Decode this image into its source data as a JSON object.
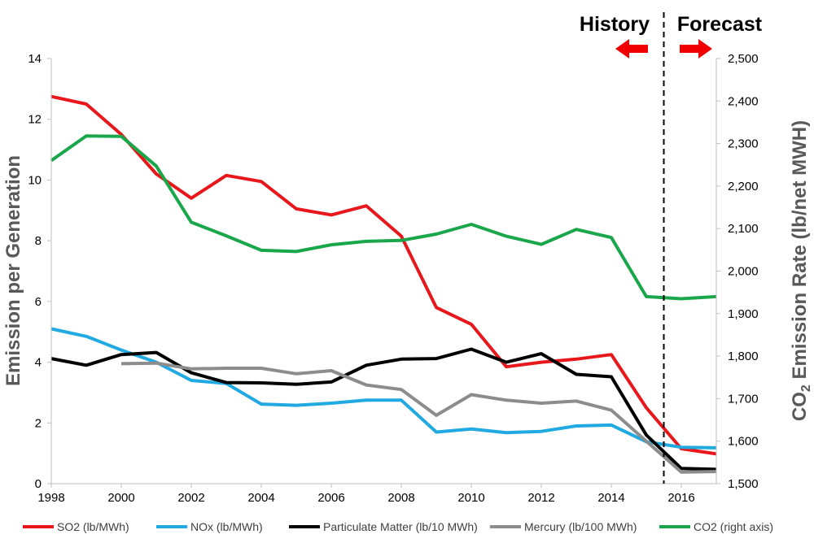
{
  "chart_data": {
    "type": "line",
    "title": "",
    "xlabel": "",
    "ylabel": "Emission per Generation",
    "y2label": {
      "prefix": "CO",
      "sub": "2",
      "suffix": " Emission Rate (lb/net MWH)"
    },
    "x": [
      1998,
      1999,
      2000,
      2001,
      2002,
      2003,
      2004,
      2005,
      2006,
      2007,
      2008,
      2009,
      2010,
      2011,
      2012,
      2013,
      2014,
      2015,
      2016,
      2017
    ],
    "xlim": [
      1998,
      2017
    ],
    "ylim": [
      0,
      14
    ],
    "y2lim": [
      1500,
      2500
    ],
    "x_ticks": [
      "1998",
      "2000",
      "2002",
      "2004",
      "2006",
      "2008",
      "2010",
      "2012",
      "2014",
      "2016"
    ],
    "y_ticks": [
      "0",
      "2",
      "4",
      "6",
      "8",
      "10",
      "12",
      "14"
    ],
    "y2_ticks": [
      "1,500",
      "1,600",
      "1,700",
      "1,800",
      "1,900",
      "2,000",
      "2,100",
      "2,200",
      "2,300",
      "2,400",
      "2,500"
    ],
    "divider_year": 2015.5,
    "history_label": "History",
    "forecast_label": "Forecast",
    "series": [
      {
        "name": "SO2 (lb/MWh)",
        "color": "#e8171b",
        "axis": "left",
        "values": [
          12.75,
          12.5,
          11.5,
          10.2,
          9.4,
          10.15,
          9.95,
          9.05,
          8.85,
          9.15,
          8.15,
          5.8,
          5.25,
          3.85,
          4.0,
          4.1,
          4.25,
          2.5,
          1.15,
          0.98
        ]
      },
      {
        "name": "NOx (lb/MWh)",
        "color": "#21a9e1",
        "axis": "left",
        "values": [
          5.1,
          4.85,
          4.4,
          4.0,
          3.4,
          3.3,
          2.62,
          2.58,
          2.65,
          2.75,
          2.75,
          1.7,
          1.8,
          1.68,
          1.72,
          1.9,
          1.93,
          1.38,
          1.2,
          1.18
        ]
      },
      {
        "name": "Particulate Matter (lb/10 MWh)",
        "color": "#000000",
        "axis": "left",
        "values": [
          4.12,
          3.9,
          4.25,
          4.32,
          3.65,
          3.33,
          3.32,
          3.27,
          3.35,
          3.9,
          4.1,
          4.12,
          4.43,
          4.0,
          4.28,
          3.6,
          3.52,
          1.6,
          0.5,
          0.47
        ]
      },
      {
        "name": "Mercury (lb/100 MWh)",
        "color": "#8c8c8c",
        "axis": "left",
        "values": [
          null,
          null,
          3.95,
          3.97,
          3.78,
          3.8,
          3.8,
          3.62,
          3.72,
          3.25,
          3.1,
          2.25,
          2.93,
          2.75,
          2.65,
          2.72,
          2.42,
          1.4,
          0.38,
          0.4
        ]
      },
      {
        "name": "CO2 (right axis)",
        "color": "#1aa64a",
        "axis": "right",
        "values": [
          2260,
          2318,
          2317,
          2247,
          2115,
          2083,
          2049,
          2046,
          2062,
          2070,
          2072,
          2087,
          2110,
          2082,
          2063,
          2098,
          2079,
          1940,
          1935,
          1940
        ]
      }
    ]
  }
}
